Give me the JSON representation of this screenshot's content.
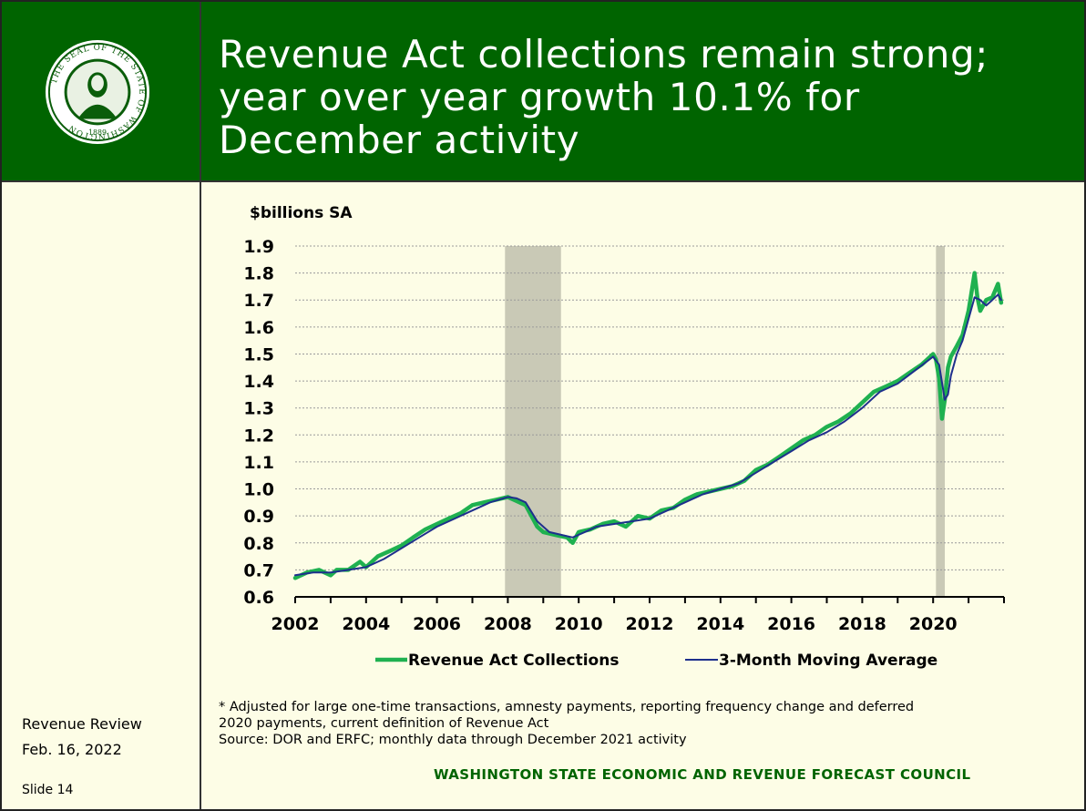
{
  "header": {
    "title_lines": [
      "Revenue Act collections remain strong;",
      "year over year growth 10.1% for",
      "December activity"
    ],
    "seal_text": "THE SEAL OF THE STATE OF WASHINGTON",
    "seal_year": "1889"
  },
  "colors": {
    "header_bg": "#006400",
    "background": "#fdfde6",
    "collections_line": "#1fb150",
    "moving_average_line": "#1e2f8c",
    "recession_shade": "#c9c9b6",
    "council_text": "#006400"
  },
  "sidebar": {
    "review": "Revenue Review",
    "date": "Feb. 16, 2022",
    "slide": "Slide 14"
  },
  "footnote": {
    "lines": [
      "* Adjusted for large one-time transactions, amnesty payments, reporting frequency change and deferred",
      "2020 payments, current definition of Revenue Act",
      "Source: DOR and ERFC; monthly data through December 2021 activity"
    ]
  },
  "council": "WASHINGTON STATE ECONOMIC AND REVENUE FORECAST COUNCIL",
  "chart_data": {
    "type": "line",
    "ylabel": "$billions SA",
    "ylim": [
      0.6,
      1.9
    ],
    "yticks": [
      "0.6",
      "0.7",
      "0.8",
      "0.9",
      "1.0",
      "1.1",
      "1.2",
      "1.3",
      "1.4",
      "1.5",
      "1.6",
      "1.7",
      "1.8",
      "1.9"
    ],
    "xlim": [
      2002,
      2022
    ],
    "xticks": [
      "2002",
      "2004",
      "2006",
      "2008",
      "2010",
      "2012",
      "2014",
      "2016",
      "2018",
      "2020"
    ],
    "grid": "horizontal dashed",
    "legend_position": "bottom",
    "recessions": [
      [
        2007.92,
        2009.5
      ],
      [
        2020.08,
        2020.33
      ]
    ],
    "series": [
      {
        "name": "Revenue Act Collections",
        "x": [
          2002.0,
          2002.33,
          2002.67,
          2003.0,
          2003.17,
          2003.5,
          2003.83,
          2004.0,
          2004.33,
          2004.67,
          2005.0,
          2005.33,
          2005.67,
          2006.0,
          2006.33,
          2006.67,
          2007.0,
          2007.33,
          2007.67,
          2008.0,
          2008.17,
          2008.5,
          2008.83,
          2009.0,
          2009.33,
          2009.67,
          2009.83,
          2010.0,
          2010.33,
          2010.67,
          2011.0,
          2011.33,
          2011.67,
          2012.0,
          2012.33,
          2012.67,
          2013.0,
          2013.33,
          2013.67,
          2014.0,
          2014.33,
          2014.67,
          2015.0,
          2015.33,
          2015.67,
          2016.0,
          2016.33,
          2016.67,
          2017.0,
          2017.33,
          2017.67,
          2018.0,
          2018.33,
          2018.67,
          2019.0,
          2019.33,
          2019.67,
          2020.0,
          2020.08,
          2020.17,
          2020.25,
          2020.33,
          2020.42,
          2020.5,
          2020.67,
          2020.83,
          2021.0,
          2021.17,
          2021.25,
          2021.33,
          2021.5,
          2021.67,
          2021.83,
          2021.92
        ],
        "values": [
          0.67,
          0.69,
          0.7,
          0.68,
          0.7,
          0.7,
          0.73,
          0.71,
          0.75,
          0.77,
          0.79,
          0.82,
          0.85,
          0.87,
          0.89,
          0.91,
          0.94,
          0.95,
          0.96,
          0.97,
          0.96,
          0.94,
          0.86,
          0.84,
          0.83,
          0.82,
          0.8,
          0.84,
          0.85,
          0.87,
          0.88,
          0.86,
          0.9,
          0.89,
          0.92,
          0.93,
          0.96,
          0.98,
          0.99,
          1.0,
          1.01,
          1.03,
          1.07,
          1.09,
          1.12,
          1.15,
          1.18,
          1.2,
          1.23,
          1.25,
          1.28,
          1.32,
          1.36,
          1.38,
          1.4,
          1.43,
          1.46,
          1.5,
          1.48,
          1.41,
          1.26,
          1.33,
          1.45,
          1.49,
          1.53,
          1.57,
          1.66,
          1.8,
          1.71,
          1.66,
          1.7,
          1.71,
          1.76,
          1.69
        ]
      },
      {
        "name": "3-Month Moving Average",
        "x": [
          2002.0,
          2002.5,
          2003.0,
          2003.5,
          2004.0,
          2004.5,
          2005.0,
          2005.5,
          2006.0,
          2006.5,
          2007.0,
          2007.5,
          2008.0,
          2008.25,
          2008.5,
          2008.83,
          2009.17,
          2009.5,
          2009.83,
          2010.17,
          2010.5,
          2011.0,
          2011.5,
          2012.0,
          2012.5,
          2013.0,
          2013.5,
          2014.0,
          2014.5,
          2015.0,
          2015.5,
          2016.0,
          2016.5,
          2017.0,
          2017.5,
          2018.0,
          2018.5,
          2019.0,
          2019.5,
          2020.0,
          2020.17,
          2020.33,
          2020.42,
          2020.5,
          2020.67,
          2020.83,
          2021.0,
          2021.17,
          2021.33,
          2021.5,
          2021.67,
          2021.83,
          2021.92
        ],
        "values": [
          0.68,
          0.69,
          0.69,
          0.7,
          0.71,
          0.74,
          0.78,
          0.82,
          0.86,
          0.89,
          0.92,
          0.95,
          0.97,
          0.965,
          0.95,
          0.88,
          0.84,
          0.83,
          0.82,
          0.84,
          0.86,
          0.87,
          0.88,
          0.89,
          0.92,
          0.95,
          0.98,
          1.0,
          1.02,
          1.06,
          1.1,
          1.14,
          1.18,
          1.21,
          1.25,
          1.3,
          1.36,
          1.39,
          1.44,
          1.49,
          1.46,
          1.33,
          1.35,
          1.42,
          1.5,
          1.55,
          1.63,
          1.71,
          1.7,
          1.68,
          1.7,
          1.72,
          1.7
        ]
      }
    ]
  }
}
